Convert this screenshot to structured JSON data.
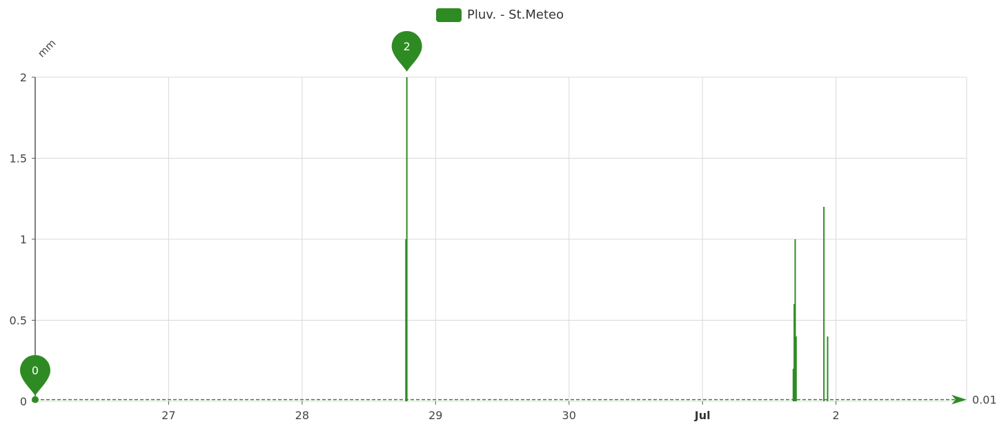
{
  "chart_data": {
    "type": "bar",
    "legend": {
      "position": "top-center",
      "items": [
        {
          "label": "Pluv. - St.Meteo",
          "color": "#2e8b23"
        }
      ]
    },
    "y_unit_label": "mm",
    "ylim": [
      0,
      2
    ],
    "y_ticks": [
      {
        "value": 0,
        "label": "0"
      },
      {
        "value": 0.5,
        "label": "0.5"
      },
      {
        "value": 1,
        "label": "1"
      },
      {
        "value": 1.5,
        "label": "1.5"
      },
      {
        "value": 2,
        "label": "2"
      }
    ],
    "x_range": [
      "2024-06-26T00:00",
      "2024-07-02T23:30"
    ],
    "x_ticks": [
      {
        "date": "2024-06-27T00:00",
        "label": "27",
        "bold": false
      },
      {
        "date": "2024-06-28T00:00",
        "label": "28",
        "bold": false
      },
      {
        "date": "2024-06-29T00:00",
        "label": "29",
        "bold": false
      },
      {
        "date": "2024-06-30T00:00",
        "label": "30",
        "bold": false
      },
      {
        "date": "2024-07-01T00:00",
        "label": "Jul",
        "bold": true
      },
      {
        "date": "2024-07-02T00:00",
        "label": "2",
        "bold": false
      }
    ],
    "grid": true,
    "series": [
      {
        "name": "Pluv. - St.Meteo",
        "color": "#2e8b23",
        "points": [
          {
            "x": "2024-06-28T18:40",
            "y": 1.0
          },
          {
            "x": "2024-06-28T18:50",
            "y": 2.0
          },
          {
            "x": "2024-07-01T16:20",
            "y": 0.2
          },
          {
            "x": "2024-07-01T16:30",
            "y": 0.6
          },
          {
            "x": "2024-07-01T16:40",
            "y": 1.0
          },
          {
            "x": "2024-07-01T16:50",
            "y": 0.4
          },
          {
            "x": "2024-07-01T21:50",
            "y": 1.2
          },
          {
            "x": "2024-07-01T22:30",
            "y": 0.4
          }
        ]
      }
    ],
    "mark_points": [
      {
        "type": "max",
        "x": "2024-06-28T18:50",
        "y": 2,
        "label": "2"
      },
      {
        "type": "min",
        "x": "2024-06-26T00:00",
        "y": 0,
        "label": "0"
      }
    ],
    "mark_line": {
      "value": 0.01,
      "label": "0.01"
    }
  }
}
